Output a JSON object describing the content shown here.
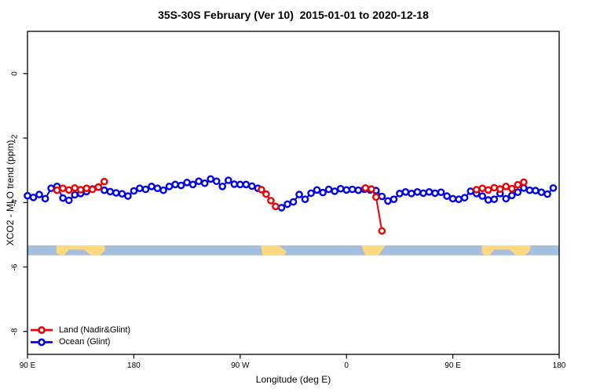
{
  "chart_data": {
    "type": "line",
    "title": "35S-30S February (Ver 10)  2015-01-01 to 2020-12-18",
    "xlabel": "Longitude (deg E)",
    "ylabel": "XCO2 - MLO trend (ppm)",
    "x_axis": {
      "note": "longitude unwrapped, 90E through 180 to 90W, 0, 90E, 180",
      "domain": [
        90,
        540
      ],
      "ticks": [
        {
          "deg": 90,
          "label": "90 E"
        },
        {
          "deg": 180,
          "label": "180"
        },
        {
          "deg": 270,
          "label": "90 W"
        },
        {
          "deg": 360,
          "label": "0"
        },
        {
          "deg": 450,
          "label": "90 E"
        },
        {
          "deg": 540,
          "label": "180"
        }
      ]
    },
    "y_axis": {
      "domain": [
        -8.71,
        1.31
      ],
      "ticks": [
        {
          "v": 0,
          "label": "0"
        },
        {
          "v": -2,
          "label": "-2"
        },
        {
          "v": -4,
          "label": "-4"
        },
        {
          "v": -6,
          "label": "-6"
        },
        {
          "v": -8,
          "label": "-8"
        }
      ]
    },
    "series": [
      {
        "name": "Land (Nadir&Glint)",
        "color": "#ee0000",
        "points": [
          [
            115,
            -3.62
          ],
          [
            120,
            -3.56
          ],
          [
            125,
            -3.61
          ],
          [
            130,
            -3.55
          ],
          [
            135,
            -3.6
          ],
          [
            140,
            -3.56
          ],
          [
            145,
            -3.59
          ],
          [
            150,
            -3.52
          ],
          [
            155,
            -3.35
          ],
          [
            288,
            -3.6
          ],
          [
            292,
            -3.74
          ],
          [
            296,
            -3.94
          ],
          [
            300,
            -4.12
          ],
          [
            376,
            -3.55
          ],
          [
            381,
            -3.58
          ],
          [
            385,
            -3.83
          ],
          [
            390,
            -4.88
          ],
          [
            470,
            -3.6
          ],
          [
            475,
            -3.56
          ],
          [
            480,
            -3.61
          ],
          [
            485,
            -3.54
          ],
          [
            490,
            -3.58
          ],
          [
            495,
            -3.5
          ],
          [
            500,
            -3.57
          ],
          [
            505,
            -3.45
          ],
          [
            510,
            -3.37
          ]
        ]
      },
      {
        "name": "Ocean (Glint)",
        "color": "#0000ee",
        "points": [
          [
            90,
            -3.79
          ],
          [
            95,
            -3.84
          ],
          [
            100,
            -3.75
          ],
          [
            105,
            -3.88
          ],
          [
            110,
            -3.56
          ],
          [
            115,
            -3.5
          ],
          [
            120,
            -3.86
          ],
          [
            125,
            -3.93
          ],
          [
            130,
            -3.76
          ],
          [
            135,
            -3.72
          ],
          [
            140,
            -3.66
          ],
          [
            145,
            -3.58
          ],
          [
            150,
            -3.52
          ],
          [
            155,
            -3.62
          ],
          [
            160,
            -3.66
          ],
          [
            165,
            -3.7
          ],
          [
            170,
            -3.73
          ],
          [
            175,
            -3.8
          ],
          [
            180,
            -3.64
          ],
          [
            185,
            -3.56
          ],
          [
            190,
            -3.59
          ],
          [
            195,
            -3.5
          ],
          [
            200,
            -3.56
          ],
          [
            205,
            -3.62
          ],
          [
            210,
            -3.5
          ],
          [
            215,
            -3.44
          ],
          [
            220,
            -3.47
          ],
          [
            225,
            -3.38
          ],
          [
            230,
            -3.44
          ],
          [
            235,
            -3.34
          ],
          [
            240,
            -3.4
          ],
          [
            245,
            -3.27
          ],
          [
            250,
            -3.34
          ],
          [
            255,
            -3.5
          ],
          [
            260,
            -3.31
          ],
          [
            265,
            -3.43
          ],
          [
            270,
            -3.44
          ],
          [
            275,
            -3.44
          ],
          [
            280,
            -3.49
          ],
          [
            285,
            -3.56
          ],
          [
            290,
            null
          ],
          [
            295,
            null
          ],
          [
            300,
            null
          ],
          [
            305,
            -4.16
          ],
          [
            310,
            -4.05
          ],
          [
            315,
            -3.98
          ],
          [
            320,
            -3.75
          ],
          [
            325,
            -3.9
          ],
          [
            330,
            -3.71
          ],
          [
            335,
            -3.61
          ],
          [
            340,
            -3.69
          ],
          [
            345,
            -3.59
          ],
          [
            350,
            -3.65
          ],
          [
            355,
            -3.57
          ],
          [
            360,
            -3.61
          ],
          [
            365,
            -3.59
          ],
          [
            370,
            -3.62
          ],
          [
            375,
            -3.59
          ],
          [
            380,
            -3.61
          ],
          [
            385,
            -3.63
          ],
          [
            390,
            -3.81
          ],
          [
            395,
            -3.95
          ],
          [
            400,
            -3.9
          ],
          [
            405,
            -3.72
          ],
          [
            410,
            -3.67
          ],
          [
            415,
            -3.72
          ],
          [
            420,
            -3.67
          ],
          [
            425,
            -3.71
          ],
          [
            430,
            -3.67
          ],
          [
            435,
            -3.71
          ],
          [
            440,
            -3.68
          ],
          [
            445,
            -3.8
          ],
          [
            450,
            -3.88
          ],
          [
            455,
            -3.9
          ],
          [
            460,
            -3.85
          ],
          [
            465,
            -3.65
          ],
          [
            470,
            -3.72
          ],
          [
            475,
            -3.8
          ],
          [
            480,
            -3.92
          ],
          [
            485,
            -3.9
          ],
          [
            490,
            -3.72
          ],
          [
            495,
            -3.88
          ],
          [
            500,
            -3.78
          ],
          [
            505,
            -3.68
          ],
          [
            510,
            -3.55
          ],
          [
            515,
            -3.62
          ],
          [
            520,
            -3.63
          ],
          [
            525,
            -3.68
          ],
          [
            530,
            -3.74
          ],
          [
            535,
            -3.55
          ]
        ]
      }
    ],
    "map_strip": {
      "v_top": -5.33,
      "v_bottom": -5.64,
      "ocean_color": "#a7bfde",
      "land_color": "#fed980",
      "land_polygons": [
        {
          "name": "australia",
          "pts": [
            [
              114.5,
              0
            ],
            [
              155.5,
              0
            ],
            [
              155.5,
              0.5
            ],
            [
              151,
              1
            ],
            [
              144,
              1
            ],
            [
              138,
              0.42
            ],
            [
              125,
              0.42
            ],
            [
              121,
              1
            ],
            [
              117.5,
              1
            ],
            [
              114.5,
              0.72
            ]
          ]
        },
        {
          "name": "south-america",
          "pts": [
            [
              287.5,
              0
            ],
            [
              302.5,
              0
            ],
            [
              309.5,
              0.65
            ],
            [
              307,
              1
            ],
            [
              289,
              1
            ]
          ]
        },
        {
          "name": "south-africa",
          "pts": [
            [
              372.5,
              0
            ],
            [
              393,
              0
            ],
            [
              387,
              1
            ],
            [
              376,
              1
            ]
          ]
        },
        {
          "name": "australia-wrap",
          "pts": [
            [
              474.5,
              0
            ],
            [
              515.5,
              0
            ],
            [
              515.5,
              0.5
            ],
            [
              511,
              1
            ],
            [
              504,
              1
            ],
            [
              498,
              0.42
            ],
            [
              485,
              0.42
            ],
            [
              481,
              1
            ],
            [
              477.5,
              1
            ],
            [
              474.5,
              0.72
            ]
          ]
        }
      ]
    },
    "legend_position": "bottom-left"
  }
}
